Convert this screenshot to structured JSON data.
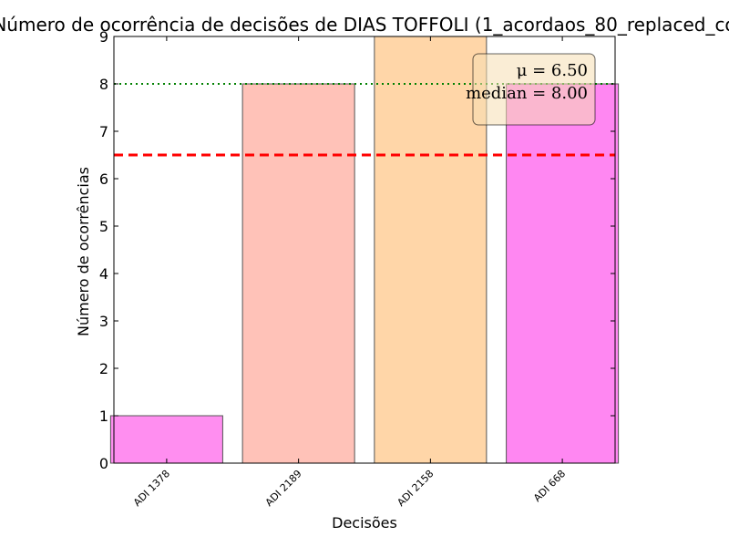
{
  "chart_data": {
    "type": "bar",
    "title": "Número de ocorrência de decisões de DIAS TOFFOLI (1_acordaos_80_replaced_co",
    "xlabel": "Decisões",
    "ylabel": "Número de ocorrências",
    "categories": [
      "ADI 1378",
      "ADI 2189",
      "ADI 2158",
      "ADI 668"
    ],
    "values": [
      1,
      8,
      9,
      8
    ],
    "bar_colors": [
      "#ff8ef0",
      "#ffc2b8",
      "#ffd6a8",
      "#ff87f2"
    ],
    "ylim": [
      0,
      9
    ],
    "yticks": [
      "0",
      "1",
      "2",
      "3",
      "4",
      "5",
      "6",
      "7",
      "8",
      "9"
    ],
    "grid": false,
    "mean": 6.5,
    "median": 8.0,
    "mean_line_color": "#ff0000",
    "median_line_color": "#008000",
    "stats_box": {
      "mean_text": "μ = 6.50",
      "median_text": "median = 8.00"
    },
    "legend_position": "top-right"
  }
}
